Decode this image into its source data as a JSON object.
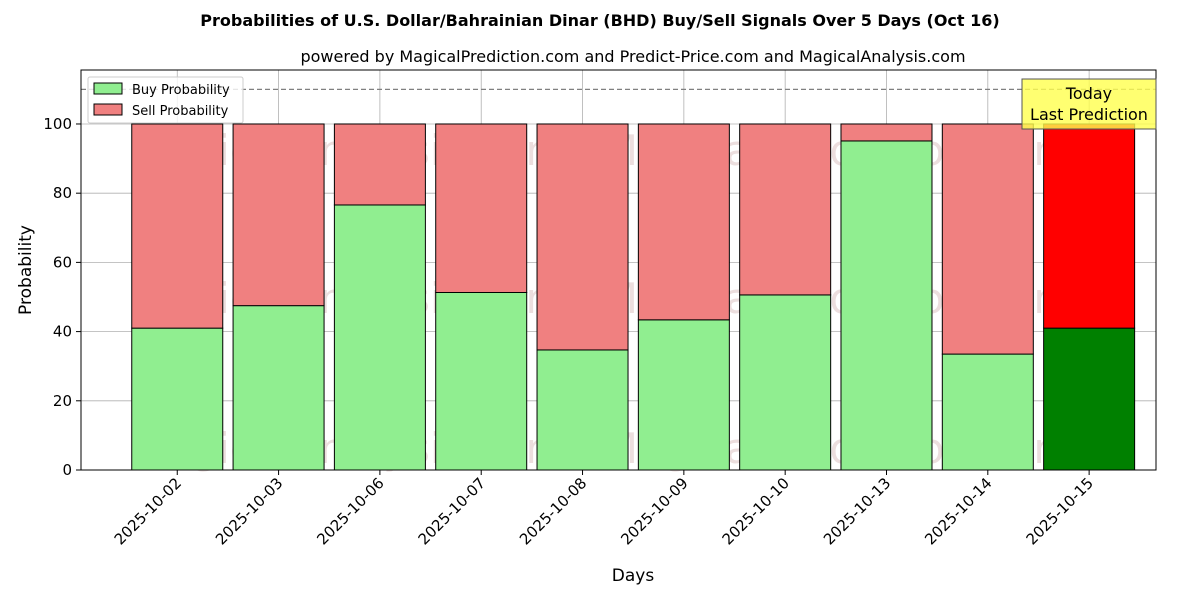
{
  "chart_data": {
    "type": "bar",
    "stacked": true,
    "title": "Probabilities of U.S. Dollar/Bahrainian Dinar (BHD) Buy/Sell Signals Over 5 Days (Oct 16)",
    "subtitle": "powered by MagicalPrediction.com and Predict-Price.com and MagicalAnalysis.com",
    "xlabel": "Days",
    "ylabel": "Probability",
    "ylim": [
      0,
      115.6
    ],
    "yticks": [
      0,
      20,
      40,
      60,
      80,
      100
    ],
    "grid": true,
    "reference_line": 110,
    "legend_position": "top-left",
    "categories": [
      "2025-10-02",
      "2025-10-03",
      "2025-10-06",
      "2025-10-07",
      "2025-10-08",
      "2025-10-09",
      "2025-10-10",
      "2025-10-13",
      "2025-10-14",
      "2025-10-15"
    ],
    "series": [
      {
        "name": "Buy Probability",
        "color": "#90ee90",
        "highlight_color": "#008000",
        "values": [
          41.0,
          47.5,
          76.6,
          51.3,
          34.7,
          43.4,
          50.6,
          95.1,
          33.5,
          41.0
        ]
      },
      {
        "name": "Sell Probability",
        "color": "#f08080",
        "highlight_color": "#ff0000",
        "values": [
          59.0,
          52.5,
          23.4,
          48.7,
          65.3,
          56.6,
          49.4,
          4.9,
          66.5,
          59.0
        ]
      }
    ],
    "annotation": {
      "line1": "Today",
      "line2": "Last Prediction",
      "color": "#ffff4d"
    },
    "watermarks": [
      "MagicalAnalysis.com",
      "MagicalPrediction.com"
    ]
  }
}
